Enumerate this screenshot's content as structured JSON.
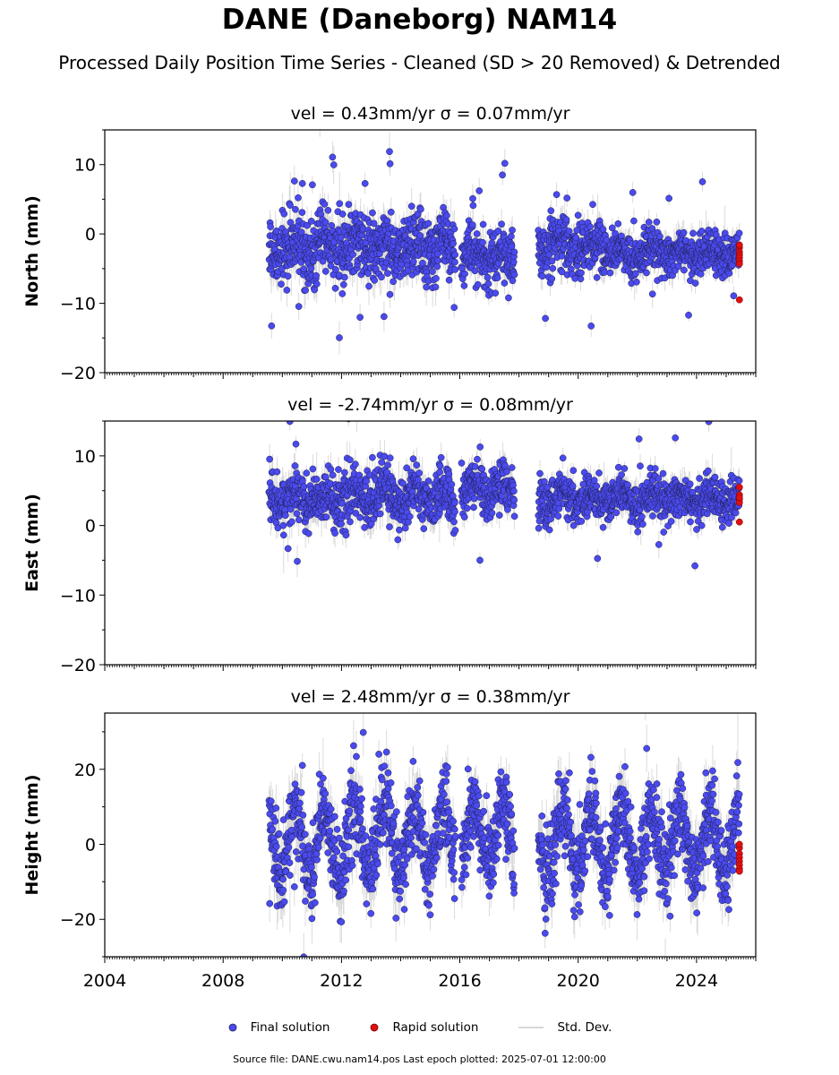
{
  "title": "DANE (Daneborg) NAM14",
  "subtitle": "Processed Daily Position Time Series - Cleaned (SD > 20 Removed) & Detrended",
  "source_text": "Source file: DANE.cwu.nam14.pos  Last epoch plotted: 2025-07-01 12:00:00",
  "colors": {
    "final": "#4a4aee",
    "final_edge": "#1f1f50",
    "rapid": "#e01010",
    "rapid_edge": "#700000",
    "stddev": "#8c8c8c"
  },
  "legend": [
    {
      "label": "Final solution",
      "key": "final"
    },
    {
      "label": "Rapid solution",
      "key": "rapid"
    },
    {
      "label": "Std. Dev.",
      "key": "stddev"
    }
  ],
  "chart_data": [
    {
      "type": "scatter",
      "component": "north",
      "title": "vel = 0.43mm/yr   σ = 0.07mm/yr",
      "ylabel": "North (mm)",
      "xlim": [
        2004.0,
        2026.0
      ],
      "ylim": [
        -20,
        15
      ],
      "yticks": [
        10,
        0,
        -10,
        -20
      ],
      "ytick_labels": [
        "10",
        "0",
        "−10",
        "−20"
      ],
      "series": [
        {
          "name": "Final solution",
          "segments": [
            {
              "x": [
                2009.55,
                2015.85
              ],
              "center": -2.0,
              "spread": 2.4,
              "amp": 1.0,
              "err": 2.0
            },
            {
              "x": [
                2016.05,
                2017.85
              ],
              "center": -3.2,
              "spread": 2.0,
              "amp": 0.8,
              "err": 1.6
            },
            {
              "x": [
                2018.65,
                2020.95
              ],
              "center": -1.8,
              "spread": 2.1,
              "amp": 0.8,
              "err": 1.6
            },
            {
              "x": [
                2020.95,
                2025.45
              ],
              "center": -2.8,
              "spread": 1.5,
              "amp": 0.6,
              "err": 1.4
            }
          ]
        },
        {
          "name": "Rapid solution",
          "x": [
            2025.45,
            2025.45,
            2025.45,
            2025.45,
            2025.45,
            2025.45,
            2025.45,
            2025.45
          ],
          "y": [
            -2.0,
            -2.6,
            -3.0,
            -3.4,
            -3.9,
            -4.3,
            -1.6,
            -9.5
          ]
        }
      ]
    },
    {
      "type": "scatter",
      "component": "east",
      "title": "vel = -2.74mm/yr   σ = 0.08mm/yr",
      "ylabel": "East (mm)",
      "xlim": [
        2004.0,
        2026.0
      ],
      "ylim": [
        -20,
        15
      ],
      "yticks": [
        10,
        0,
        -10,
        -20
      ],
      "ytick_labels": [
        "10",
        "0",
        "−10",
        "−20"
      ],
      "series": [
        {
          "name": "Final solution",
          "segments": [
            {
              "x": [
                2009.55,
                2015.85
              ],
              "center": 4.0,
              "spread": 1.9,
              "amp": 1.2,
              "err": 1.8
            },
            {
              "x": [
                2016.05,
                2017.85
              ],
              "center": 5.2,
              "spread": 1.7,
              "amp": 1.0,
              "err": 1.5
            },
            {
              "x": [
                2018.65,
                2025.45
              ],
              "center": 3.8,
              "spread": 1.5,
              "amp": 0.8,
              "err": 1.4
            }
          ]
        },
        {
          "name": "Rapid solution",
          "x": [
            2025.45,
            2025.45,
            2025.45,
            2025.45,
            2025.45,
            2025.45
          ],
          "y": [
            5.5,
            4.4,
            3.8,
            3.3,
            4.0,
            0.5
          ]
        }
      ]
    },
    {
      "type": "scatter",
      "component": "height",
      "title": "vel = 2.48mm/yr   σ = 0.38mm/yr",
      "ylabel": "Height (mm)",
      "xlim": [
        2004.0,
        2026.0
      ],
      "ylim": [
        -30,
        35
      ],
      "yticks": [
        20,
        0,
        -20
      ],
      "ytick_labels": [
        "20",
        "0",
        "−20"
      ],
      "xticks": [
        2004,
        2008,
        2012,
        2016,
        2020,
        2024
      ],
      "xtick_labels": [
        "2004",
        "2008",
        "2012",
        "2016",
        "2020",
        "2024"
      ],
      "series": [
        {
          "name": "Final solution",
          "segments": [
            {
              "x": [
                2009.55,
                2015.85
              ],
              "center": 1.0,
              "spread": 5.5,
              "amp": 9.0,
              "err": 5.0
            },
            {
              "x": [
                2016.05,
                2017.85
              ],
              "center": 3.0,
              "spread": 5.0,
              "amp": 8.0,
              "err": 4.5
            },
            {
              "x": [
                2018.65,
                2025.45
              ],
              "center": 0.5,
              "spread": 5.5,
              "amp": 9.0,
              "err": 5.0
            }
          ]
        },
        {
          "name": "Rapid solution",
          "x": [
            2025.45,
            2025.45,
            2025.45,
            2025.45,
            2025.45,
            2025.45,
            2025.45,
            2025.45
          ],
          "y": [
            -1.0,
            -2.5,
            -3.5,
            -4.5,
            -5.5,
            -6.5,
            -7.2,
            0.0
          ]
        }
      ]
    }
  ]
}
